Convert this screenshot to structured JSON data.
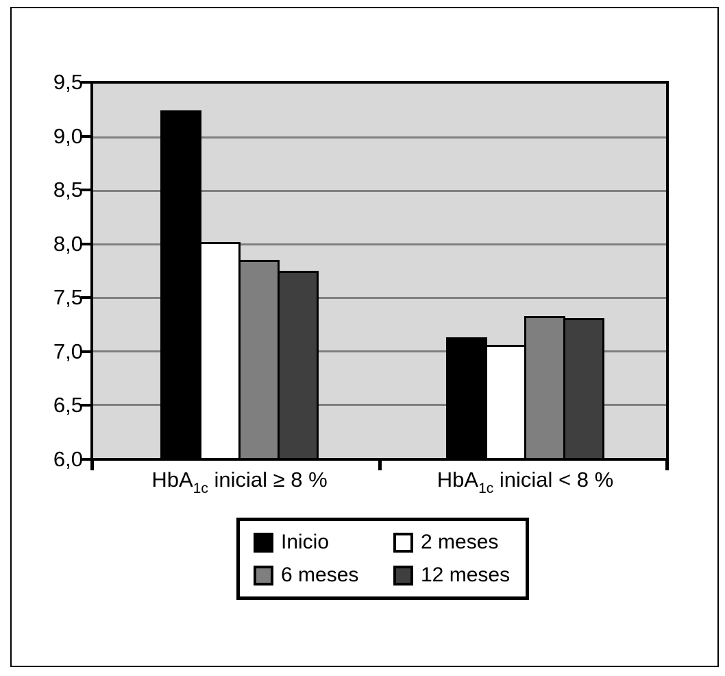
{
  "figure": {
    "background_color": "#ffffff",
    "frame_border_color": "#000000"
  },
  "chart_data": {
    "type": "bar",
    "title": "",
    "xlabel": "",
    "ylabel": "",
    "ylim": [
      6.0,
      9.5
    ],
    "ytick_step": 0.5,
    "decimal_separator": ",",
    "grid": true,
    "plot_background": "#d8d8d8",
    "gridline_color": "#7f7f7f",
    "axis_color": "#000000",
    "legend_position": "bottom",
    "legend_columns": 2,
    "yticks": [
      {
        "value": 9.5,
        "label": "9,5"
      },
      {
        "value": 9.0,
        "label": "9,0"
      },
      {
        "value": 8.5,
        "label": "8,5"
      },
      {
        "value": 8.0,
        "label": "8,0"
      },
      {
        "value": 7.5,
        "label": "7,5"
      },
      {
        "value": 7.0,
        "label": "7,0"
      },
      {
        "value": 6.5,
        "label": "6,5"
      },
      {
        "value": 6.0,
        "label": "6,0"
      }
    ],
    "categories": [
      {
        "base": "HbA",
        "sub": "1c",
        "rest": " inicial ≥ 8 %",
        "plain": "HbA1c inicial >= 8 %"
      },
      {
        "base": "HbA",
        "sub": "1c",
        "rest": " inicial < 8 %",
        "plain": "HbA1c inicial < 8 %"
      }
    ],
    "series": [
      {
        "name": "Inicio",
        "color": "#000000",
        "values": [
          9.25,
          7.13
        ]
      },
      {
        "name": "2 meses",
        "color": "#ffffff",
        "values": [
          8.02,
          7.06
        ]
      },
      {
        "name": "6 meses",
        "color": "#7f7f7f",
        "values": [
          7.85,
          7.33
        ]
      },
      {
        "name": "12 meses",
        "color": "#3f3f3f",
        "values": [
          7.75,
          7.31
        ]
      }
    ]
  }
}
